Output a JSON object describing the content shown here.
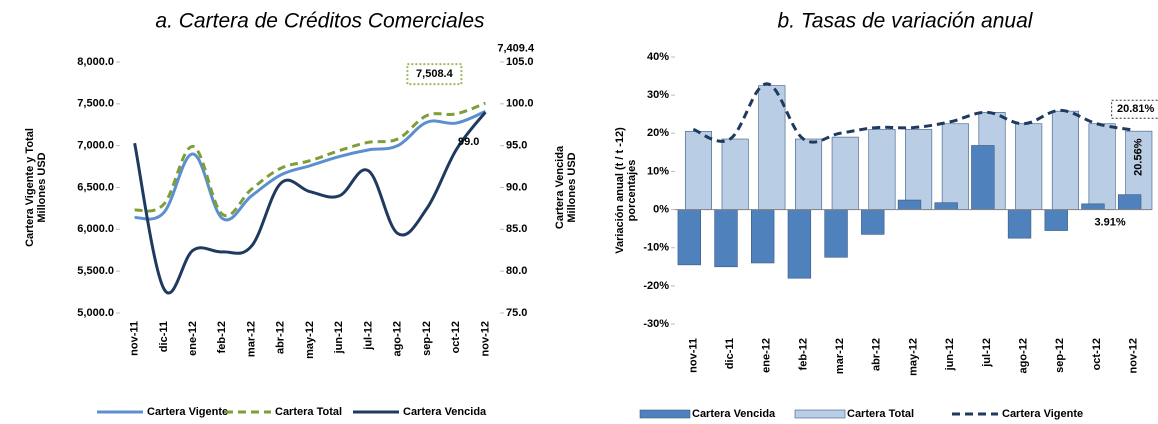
{
  "chart_data": [
    {
      "type": "line",
      "title": "a.    Cartera de Créditos Comerciales",
      "y_label": [
        "Cartera Vigente y Total",
        "Millones USD"
      ],
      "y2_label": [
        "Cartera Vencida",
        "Millones USD"
      ],
      "categories": [
        "nov-11",
        "dic-11",
        "ene-12",
        "feb-12",
        "mar-12",
        "abr-12",
        "may-12",
        "jun-12",
        "jul-12",
        "ago-12",
        "sep-12",
        "oct-12",
        "nov-12"
      ],
      "ylim": [
        5000,
        8000
      ],
      "yticks": [
        {
          "value": 5000,
          "label": "5,000.0"
        },
        {
          "value": 5500,
          "label": "5,500.0"
        },
        {
          "value": 6000,
          "label": "6,000.0"
        },
        {
          "value": 6500,
          "label": "6,500.0"
        },
        {
          "value": 7000,
          "label": "7,000.0"
        },
        {
          "value": 7500,
          "label": "7,500.0"
        },
        {
          "value": 8000,
          "label": "8,000.0"
        }
      ],
      "y2lim": [
        75,
        105
      ],
      "y2ticks": [
        {
          "value": 75,
          "label": "75.0"
        },
        {
          "value": 80,
          "label": "80.0"
        },
        {
          "value": 85,
          "label": "85.0"
        },
        {
          "value": 90,
          "label": "90.0"
        },
        {
          "value": 95,
          "label": "95.0"
        },
        {
          "value": 100,
          "label": "100.0"
        },
        {
          "value": 105,
          "label": "105.0"
        }
      ],
      "series": [
        {
          "name": "Cartera Vigente",
          "color": "#5b8fd0",
          "line_style": "solid",
          "values": [
            6140,
            6200,
            6900,
            6130,
            6400,
            6650,
            6760,
            6870,
            6950,
            7000,
            7280,
            7270,
            7409.4
          ],
          "value_labels": [
            null,
            null,
            null,
            null,
            null,
            null,
            null,
            null,
            null,
            null,
            null,
            null,
            "7,409.4"
          ]
        },
        {
          "name": "Cartera Total",
          "color": "#7f9e3a",
          "line_style": "dashed",
          "values": [
            6230,
            6300,
            6990,
            6180,
            6480,
            6730,
            6820,
            6940,
            7040,
            7080,
            7360,
            7380,
            7508.4
          ],
          "value_labels": [
            null,
            null,
            null,
            null,
            null,
            null,
            null,
            null,
            null,
            null,
            null,
            null,
            "7,508.4"
          ]
        },
        {
          "name": "Cartera Vencida",
          "color": "#1f3a5f",
          "line_style": "solid",
          "axis": "y2",
          "values": [
            95.3,
            77.9,
            82.5,
            82.3,
            83.0,
            90.5,
            89.5,
            89.0,
            92.0,
            84.5,
            87.5,
            94.5,
            99.0
          ],
          "value_labels": [
            null,
            null,
            null,
            null,
            null,
            null,
            null,
            null,
            null,
            null,
            null,
            null,
            "99.0"
          ]
        }
      ]
    },
    {
      "type": "bar",
      "title": "b. Tasas de variación anual",
      "y_label": [
        "Variación anual (t / t -12)",
        "porcentajes"
      ],
      "categories": [
        "nov-11",
        "dic-11",
        "ene-12",
        "feb-12",
        "mar-12",
        "abr-12",
        "may-12",
        "jun-12",
        "jul-12",
        "ago-12",
        "sep-12",
        "oct-12",
        "nov-12"
      ],
      "ylim": [
        -30,
        40
      ],
      "yticks": [
        {
          "value": -30,
          "label": "-30%"
        },
        {
          "value": -20,
          "label": "-20%"
        },
        {
          "value": -10,
          "label": "-10%"
        },
        {
          "value": 0,
          "label": "0%"
        },
        {
          "value": 10,
          "label": "10%"
        },
        {
          "value": 20,
          "label": "20%"
        },
        {
          "value": 30,
          "label": "30%"
        },
        {
          "value": 40,
          "label": "40%"
        }
      ],
      "series": [
        {
          "name": "Cartera Vencida",
          "color": "#4f81bd",
          "type": "bar",
          "values": [
            -14.5,
            -15,
            -14,
            -18,
            -12.5,
            -6.5,
            2.5,
            1.8,
            16.8,
            -7.5,
            -5.5,
            1.5,
            3.91
          ],
          "value_labels": [
            null,
            null,
            null,
            null,
            null,
            null,
            null,
            null,
            null,
            null,
            null,
            null,
            "3.91%"
          ]
        },
        {
          "name": "Cartera Total",
          "color": "#b9cde5",
          "type": "bar",
          "values": [
            20.5,
            18.5,
            32.5,
            18.5,
            19,
            21,
            21,
            22.5,
            25.5,
            22.5,
            25.8,
            22.5,
            20.56
          ],
          "value_labels": [
            null,
            null,
            null,
            null,
            null,
            null,
            null,
            null,
            null,
            null,
            null,
            null,
            "20.56%"
          ]
        },
        {
          "name": "Cartera Vigente",
          "color": "#1f3a5f",
          "type": "line",
          "line_style": "dashed",
          "values": [
            21,
            18.5,
            33,
            18.5,
            20,
            21.5,
            21.5,
            23,
            25.5,
            22.5,
            26,
            22.5,
            20.81
          ],
          "value_labels": [
            null,
            null,
            null,
            null,
            null,
            null,
            null,
            null,
            null,
            null,
            null,
            null,
            "20.81%"
          ]
        }
      ]
    }
  ]
}
